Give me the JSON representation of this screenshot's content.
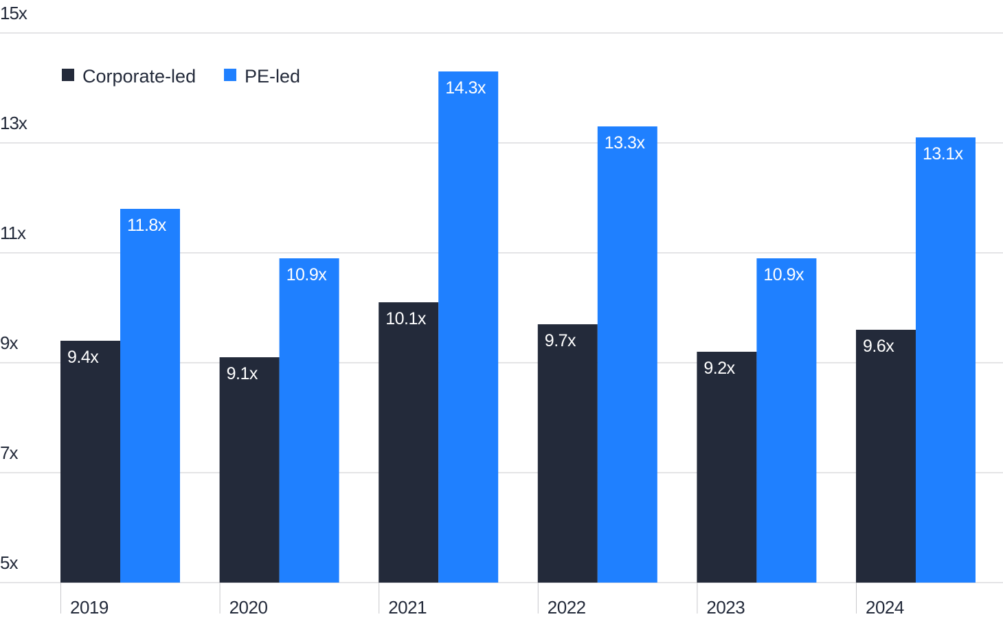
{
  "chart_data": {
    "type": "bar",
    "title": "",
    "xlabel": "",
    "ylabel": "",
    "categories": [
      "2019",
      "2020",
      "2021",
      "2022",
      "2023",
      "2024"
    ],
    "series": [
      {
        "name": "Corporate-led",
        "color": "#232a3a",
        "values": [
          9.4,
          9.1,
          10.1,
          9.7,
          9.2,
          9.6
        ],
        "labels": [
          "9.4x",
          "9.1x",
          "10.1x",
          "9.7x",
          "9.2x",
          "9.6x"
        ]
      },
      {
        "name": "PE-led",
        "color": "#1f80ff",
        "values": [
          11.8,
          10.9,
          14.3,
          13.3,
          10.9,
          13.1
        ],
        "labels": [
          "11.8x",
          "10.9x",
          "14.3x",
          "13.3x",
          "10.9x",
          "13.1x"
        ]
      }
    ],
    "ylim": [
      5,
      15
    ],
    "yticks": [
      5,
      7,
      9,
      11,
      13,
      15
    ],
    "ytick_labels": [
      "5x",
      "7x",
      "9x",
      "11x",
      "13x",
      "15x"
    ],
    "grid": true,
    "legend_position": "top-left"
  }
}
